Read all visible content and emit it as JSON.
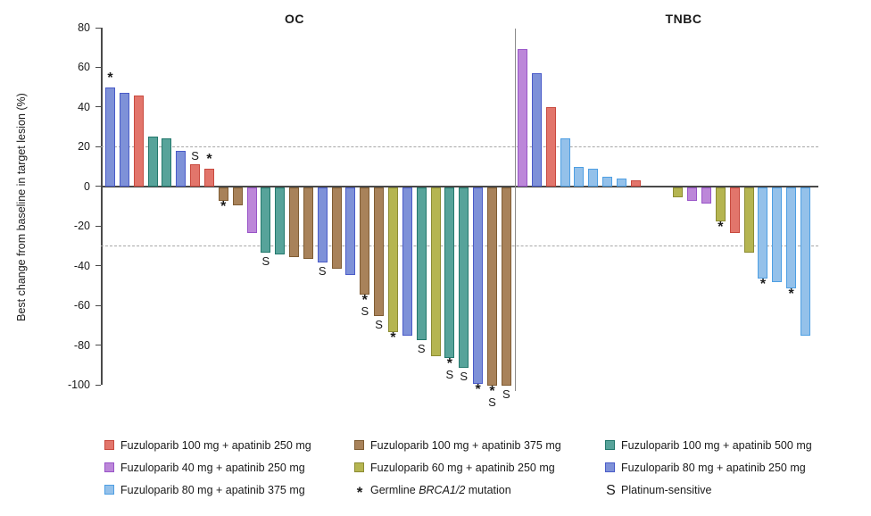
{
  "chart_data": {
    "type": "bar",
    "subtype": "waterfall",
    "ylabel": "Best change from baseline in target lesion (%)",
    "ylim": [
      -100,
      80
    ],
    "yticks": [
      80,
      60,
      40,
      20,
      0,
      -20,
      -40,
      -60,
      -80,
      -100
    ],
    "reference_lines": [
      20,
      -30
    ],
    "grid": "off",
    "arms": {
      "red": {
        "label": "Fuzuloparib 100 mg + apatinib 250 mg",
        "fill": "#E2756B",
        "border": "#C84A3F"
      },
      "brown": {
        "label": "Fuzuloparib 100 mg + apatinib 375 mg",
        "fill": "#A8825A",
        "border": "#7F5C33"
      },
      "teal": {
        "label": "Fuzuloparib 100 mg + apatinib 500 mg",
        "fill": "#57A39A",
        "border": "#23786C"
      },
      "purple": {
        "label": "Fuzuloparib 40 mg + apatinib 250 mg",
        "fill": "#BC87D9",
        "border": "#9955C8"
      },
      "olive": {
        "label": "Fuzuloparib 60 mg + apatinib 250 mg",
        "fill": "#B5B551",
        "border": "#8C8C33"
      },
      "blue": {
        "label": "Fuzuloparib 80 mg + apatinib 250 mg",
        "fill": "#7E91D8",
        "border": "#4A5BC8"
      },
      "lightblue": {
        "label": "Fuzuloparib 80 mg + apatinib 375 mg",
        "fill": "#94C1EA",
        "border": "#4E9FE3"
      }
    },
    "marks_meaning": {
      "*": "Germline BRCA1/2 mutation",
      "S": "Platinum-sensitive"
    },
    "groups": [
      {
        "name": "OC",
        "bars": [
          {
            "v": 50,
            "a": "blue",
            "m": "*"
          },
          {
            "v": 47,
            "a": "blue",
            "m": ""
          },
          {
            "v": 46,
            "a": "red",
            "m": ""
          },
          {
            "v": 25,
            "a": "teal",
            "m": ""
          },
          {
            "v": 24,
            "a": "teal",
            "m": ""
          },
          {
            "v": 18,
            "a": "blue",
            "m": ""
          },
          {
            "v": 11,
            "a": "red",
            "m": "S"
          },
          {
            "v": 9,
            "a": "red",
            "m": "*"
          },
          {
            "v": -7,
            "a": "brown",
            "m": "*"
          },
          {
            "v": -9,
            "a": "brown",
            "m": ""
          },
          {
            "v": -23,
            "a": "purple",
            "m": ""
          },
          {
            "v": -33,
            "a": "teal",
            "m": "S"
          },
          {
            "v": -34,
            "a": "teal",
            "m": ""
          },
          {
            "v": -35,
            "a": "brown",
            "m": ""
          },
          {
            "v": -36,
            "a": "brown",
            "m": ""
          },
          {
            "v": -38,
            "a": "blue",
            "m": "S"
          },
          {
            "v": -41,
            "a": "brown",
            "m": ""
          },
          {
            "v": -44,
            "a": "blue",
            "m": ""
          },
          {
            "v": -54,
            "a": "brown",
            "m": "*S"
          },
          {
            "v": -65,
            "a": "brown",
            "m": "S"
          },
          {
            "v": -73,
            "a": "olive",
            "m": "*"
          },
          {
            "v": -75,
            "a": "blue",
            "m": ""
          },
          {
            "v": -77,
            "a": "teal",
            "m": "S"
          },
          {
            "v": -85,
            "a": "olive",
            "m": ""
          },
          {
            "v": -86,
            "a": "teal",
            "m": "*S"
          },
          {
            "v": -91,
            "a": "teal",
            "m": "S"
          },
          {
            "v": -99,
            "a": "blue",
            "m": "*"
          },
          {
            "v": -100,
            "a": "brown",
            "m": "*S"
          },
          {
            "v": -100,
            "a": "brown",
            "m": "S"
          }
        ]
      },
      {
        "name": "TNBC",
        "bars": [
          {
            "v": 69,
            "a": "purple",
            "m": ""
          },
          {
            "v": 57,
            "a": "blue",
            "m": ""
          },
          {
            "v": 40,
            "a": "red",
            "m": ""
          },
          {
            "v": 24,
            "a": "lightblue",
            "m": ""
          },
          {
            "v": 10,
            "a": "lightblue",
            "m": ""
          },
          {
            "v": 9,
            "a": "lightblue",
            "m": ""
          },
          {
            "v": 5,
            "a": "lightblue",
            "m": ""
          },
          {
            "v": 4,
            "a": "lightblue",
            "m": ""
          },
          {
            "v": 3,
            "a": "red",
            "m": ""
          },
          {
            "v": 0,
            "a": null,
            "m": ""
          },
          {
            "v": 0,
            "a": null,
            "m": ""
          },
          {
            "v": -5,
            "a": "olive",
            "m": ""
          },
          {
            "v": -7,
            "a": "purple",
            "m": ""
          },
          {
            "v": -8,
            "a": "purple",
            "m": ""
          },
          {
            "v": -17,
            "a": "olive",
            "m": "*"
          },
          {
            "v": -23,
            "a": "red",
            "m": ""
          },
          {
            "v": -33,
            "a": "olive",
            "m": ""
          },
          {
            "v": -46,
            "a": "lightblue",
            "m": "*"
          },
          {
            "v": -48,
            "a": "lightblue",
            "m": ""
          },
          {
            "v": -51,
            "a": "lightblue",
            "m": "*"
          },
          {
            "v": -75,
            "a": "lightblue",
            "m": ""
          }
        ]
      }
    ]
  },
  "legend": {
    "columns": [
      [
        {
          "type": "swatch",
          "arm": "red"
        },
        {
          "type": "swatch",
          "arm": "purple"
        },
        {
          "type": "swatch",
          "arm": "lightblue"
        }
      ],
      [
        {
          "type": "swatch",
          "arm": "brown"
        },
        {
          "type": "swatch",
          "arm": "olive"
        },
        {
          "type": "symbol",
          "symbol": "*",
          "parts": [
            "Germline ",
            "BRCA1/2",
            " mutation"
          ]
        }
      ],
      [
        {
          "type": "swatch",
          "arm": "teal"
        },
        {
          "type": "swatch",
          "arm": "blue"
        },
        {
          "type": "symbol",
          "symbol": "S",
          "parts": [
            "Platinum-sensitive"
          ]
        }
      ]
    ]
  }
}
